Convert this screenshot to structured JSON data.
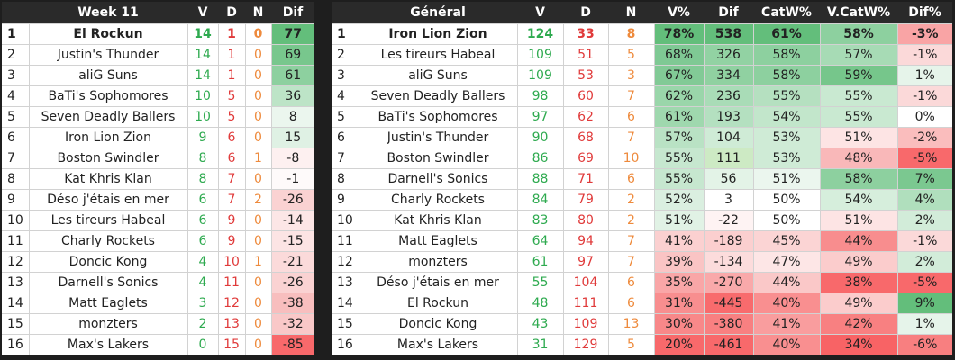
{
  "week": {
    "title": "Week 11",
    "cols": [
      "V",
      "D",
      "N",
      "Dif"
    ],
    "rows": [
      {
        "rank": "1",
        "team": "El Rockun",
        "v": "14",
        "d": "1",
        "n": "0",
        "dif": "77",
        "bg": "#63be7b"
      },
      {
        "rank": "2",
        "team": "Justin's Thunder",
        "v": "14",
        "d": "1",
        "n": "0",
        "dif": "69",
        "bg": "#78c78d"
      },
      {
        "rank": "3",
        "team": "aliG Suns",
        "v": "14",
        "d": "1",
        "n": "0",
        "dif": "61",
        "bg": "#8dd09f"
      },
      {
        "rank": "4",
        "team": "BaTi's Sophomores",
        "v": "10",
        "d": "5",
        "n": "0",
        "dif": "36",
        "bg": "#bde4c7"
      },
      {
        "rank": "5",
        "team": "Seven Deadly Ballers",
        "v": "10",
        "d": "5",
        "n": "0",
        "dif": "8",
        "bg": "#ebf6ee"
      },
      {
        "rank": "6",
        "team": "Iron Lion Zion",
        "v": "9",
        "d": "6",
        "n": "0",
        "dif": "15",
        "bg": "#dff1e4"
      },
      {
        "rank": "7",
        "team": "Boston Swindler",
        "v": "8",
        "d": "6",
        "n": "1",
        "dif": "-8",
        "bg": "#fdf0f0"
      },
      {
        "rank": "8",
        "team": "Kat Khris Klan",
        "v": "8",
        "d": "7",
        "n": "0",
        "dif": "-1",
        "bg": "#fefafa"
      },
      {
        "rank": "9",
        "team": "Déso j'étais en mer",
        "v": "6",
        "d": "7",
        "n": "2",
        "dif": "-26",
        "bg": "#fad2d2"
      },
      {
        "rank": "10",
        "team": "Les tireurs Habeal",
        "v": "6",
        "d": "9",
        "n": "0",
        "dif": "-14",
        "bg": "#fce6e6"
      },
      {
        "rank": "11",
        "team": "Charly Rockets",
        "v": "6",
        "d": "9",
        "n": "0",
        "dif": "-15",
        "bg": "#fce4e4"
      },
      {
        "rank": "12",
        "team": "Doncic Kong",
        "v": "4",
        "d": "10",
        "n": "1",
        "dif": "-21",
        "bg": "#fbdada"
      },
      {
        "rank": "13",
        "team": "Darnell's Sonics",
        "v": "4",
        "d": "11",
        "n": "0",
        "dif": "-26",
        "bg": "#fad2d2"
      },
      {
        "rank": "14",
        "team": "Matt Eaglets",
        "v": "3",
        "d": "12",
        "n": "0",
        "dif": "-38",
        "bg": "#f8bebe"
      },
      {
        "rank": "15",
        "team": "monzters",
        "v": "2",
        "d": "13",
        "n": "0",
        "dif": "-32",
        "bg": "#f9c8c8"
      },
      {
        "rank": "16",
        "team": "Max's Lakers",
        "v": "0",
        "d": "15",
        "n": "0",
        "dif": "-85",
        "bg": "#f8696b"
      }
    ]
  },
  "general": {
    "title": "Général",
    "cols": [
      "V",
      "D",
      "N",
      "V%",
      "Dif",
      "CatW%",
      "V.CatW%",
      "Dif%"
    ],
    "rows": [
      {
        "rank": "1",
        "team": "Iron Lion Zion",
        "v": "124",
        "d": "33",
        "n": "8",
        "vp": "78%",
        "dif": "538",
        "cat": "61%",
        "vcat": "58%",
        "difp": "-3%",
        "bg_vp": "#63be7b",
        "bg_dif": "#63be7b",
        "bg_cat": "#63be7b",
        "bg_vcat": "#8dd09f",
        "bg_difp": "#f9a4a5"
      },
      {
        "rank": "2",
        "team": "Les tireurs Habeal",
        "v": "109",
        "d": "51",
        "n": "5",
        "vp": "68%",
        "dif": "326",
        "cat": "58%",
        "vcat": "57%",
        "difp": "-1%",
        "bg_vp": "#7fc994",
        "bg_dif": "#92d2a3",
        "bg_cat": "#8dd09f",
        "bg_vcat": "#a7dbb5",
        "bg_difp": "#fbd9d9"
      },
      {
        "rank": "3",
        "team": "aliG Suns",
        "v": "109",
        "d": "53",
        "n": "3",
        "vp": "67%",
        "dif": "334",
        "cat": "58%",
        "vcat": "59%",
        "difp": "1%",
        "bg_vp": "#82ca96",
        "bg_dif": "#90d1a1",
        "bg_cat": "#8dd09f",
        "bg_vcat": "#76c68b",
        "bg_difp": "#e6f4ea"
      },
      {
        "rank": "4",
        "team": "Seven Deadly Ballers",
        "v": "98",
        "d": "60",
        "n": "7",
        "vp": "62%",
        "dif": "236",
        "cat": "55%",
        "vcat": "55%",
        "difp": "-1%",
        "bg_vp": "#9ad6aa",
        "bg_dif": "#a9dcb7",
        "bg_cat": "#b5e0c0",
        "bg_vcat": "#c9e9d1",
        "bg_difp": "#fbd9d9"
      },
      {
        "rank": "5",
        "team": "BaTi's Sophomores",
        "v": "97",
        "d": "62",
        "n": "6",
        "vp": "61%",
        "dif": "193",
        "cat": "54%",
        "vcat": "55%",
        "difp": "0%",
        "bg_vp": "#9fd8ae",
        "bg_dif": "#b4e0c0",
        "bg_cat": "#c2e6cb",
        "bg_vcat": "#c9e9d1",
        "bg_difp": "#ffffff"
      },
      {
        "rank": "6",
        "team": "Justin's Thunder",
        "v": "90",
        "d": "68",
        "n": "7",
        "vp": "57%",
        "dif": "104",
        "cat": "53%",
        "vcat": "51%",
        "difp": "-2%",
        "bg_vp": "#b9e2c4",
        "bg_dif": "#cfebd6",
        "bg_cat": "#cfebd6",
        "bg_vcat": "#fde4e4",
        "bg_difp": "#fabdbd"
      },
      {
        "rank": "7",
        "team": "Boston Swindler",
        "v": "86",
        "d": "69",
        "n": "10",
        "vp": "55%",
        "dif": "111",
        "cat": "53%",
        "vcat": "48%",
        "difp": "-5%",
        "bg_vp": "#c6e7cf",
        "bg_dif": "#cdeac4",
        "bg_cat": "#cfebd6",
        "bg_vcat": "#f9b8b9",
        "bg_difp": "#f8696b"
      },
      {
        "rank": "8",
        "team": "Darnell's Sonics",
        "v": "88",
        "d": "71",
        "n": "6",
        "vp": "55%",
        "dif": "56",
        "cat": "51%",
        "vcat": "58%",
        "difp": "7%",
        "bg_vp": "#c6e7cf",
        "bg_dif": "#e3f3e7",
        "bg_cat": "#ebf6ee",
        "bg_vcat": "#8dd09f",
        "bg_difp": "#7bc890"
      },
      {
        "rank": "9",
        "team": "Charly Rockets",
        "v": "84",
        "d": "79",
        "n": "2",
        "vp": "52%",
        "dif": "3",
        "cat": "50%",
        "vcat": "54%",
        "difp": "4%",
        "bg_vp": "#daefe0",
        "bg_dif": "#ffffff",
        "bg_cat": "#ffffff",
        "bg_vcat": "#d6eedc",
        "bg_difp": "#b0dfbd"
      },
      {
        "rank": "10",
        "team": "Kat Khris Klan",
        "v": "83",
        "d": "80",
        "n": "2",
        "vp": "51%",
        "dif": "-22",
        "cat": "50%",
        "vcat": "51%",
        "difp": "2%",
        "bg_vp": "#e1f2e5",
        "bg_dif": "#fef3f3",
        "bg_cat": "#ffffff",
        "bg_vcat": "#fde4e4",
        "bg_difp": "#d2ecd9"
      },
      {
        "rank": "11",
        "team": "Matt Eaglets",
        "v": "64",
        "d": "94",
        "n": "7",
        "vp": "41%",
        "dif": "-189",
        "cat": "45%",
        "vcat": "44%",
        "difp": "-1%",
        "bg_vp": "#fbd0d0",
        "bg_dif": "#fbcfcf",
        "bg_cat": "#fbd4d4",
        "bg_vcat": "#f88d8e",
        "bg_difp": "#fbd9d9"
      },
      {
        "rank": "12",
        "team": "monzters",
        "v": "61",
        "d": "97",
        "n": "7",
        "vp": "39%",
        "dif": "-134",
        "cat": "47%",
        "vcat": "49%",
        "difp": "2%",
        "bg_vp": "#fac4c4",
        "bg_dif": "#fcdcdc",
        "bg_cat": "#fde6e6",
        "bg_vcat": "#fbcccc",
        "bg_difp": "#d2ecd9"
      },
      {
        "rank": "13",
        "team": "Déso j'étais en mer",
        "v": "55",
        "d": "104",
        "n": "6",
        "vp": "35%",
        "dif": "-270",
        "cat": "44%",
        "vcat": "38%",
        "difp": "-5%",
        "bg_vp": "#f9a6a7",
        "bg_dif": "#f9a9aa",
        "bg_cat": "#fac8c8",
        "bg_vcat": "#f8696b",
        "bg_difp": "#f8696b"
      },
      {
        "rank": "14",
        "team": "El Rockun",
        "v": "48",
        "d": "111",
        "n": "6",
        "vp": "31%",
        "dif": "-445",
        "cat": "40%",
        "vcat": "49%",
        "difp": "9%",
        "bg_vp": "#f88e8f",
        "bg_dif": "#f86b6d",
        "bg_cat": "#f98f90",
        "bg_vcat": "#fbcccc",
        "bg_difp": "#63be7b"
      },
      {
        "rank": "15",
        "team": "Doncic Kong",
        "v": "43",
        "d": "109",
        "n": "13",
        "vp": "30%",
        "dif": "-380",
        "cat": "41%",
        "vcat": "42%",
        "difp": "1%",
        "bg_vp": "#f88889",
        "bg_dif": "#f88081",
        "bg_cat": "#f99d9e",
        "bg_vcat": "#f88081",
        "bg_difp": "#e6f4ea"
      },
      {
        "rank": "16",
        "team": "Max's Lakers",
        "v": "31",
        "d": "129",
        "n": "5",
        "vp": "20%",
        "dif": "-461",
        "cat": "40%",
        "vcat": "34%",
        "difp": "-6%",
        "bg_vp": "#f8696b",
        "bg_dif": "#f8696b",
        "bg_cat": "#f98f90",
        "bg_vcat": "#f86365",
        "bg_difp": "#f87f80"
      }
    ]
  }
}
